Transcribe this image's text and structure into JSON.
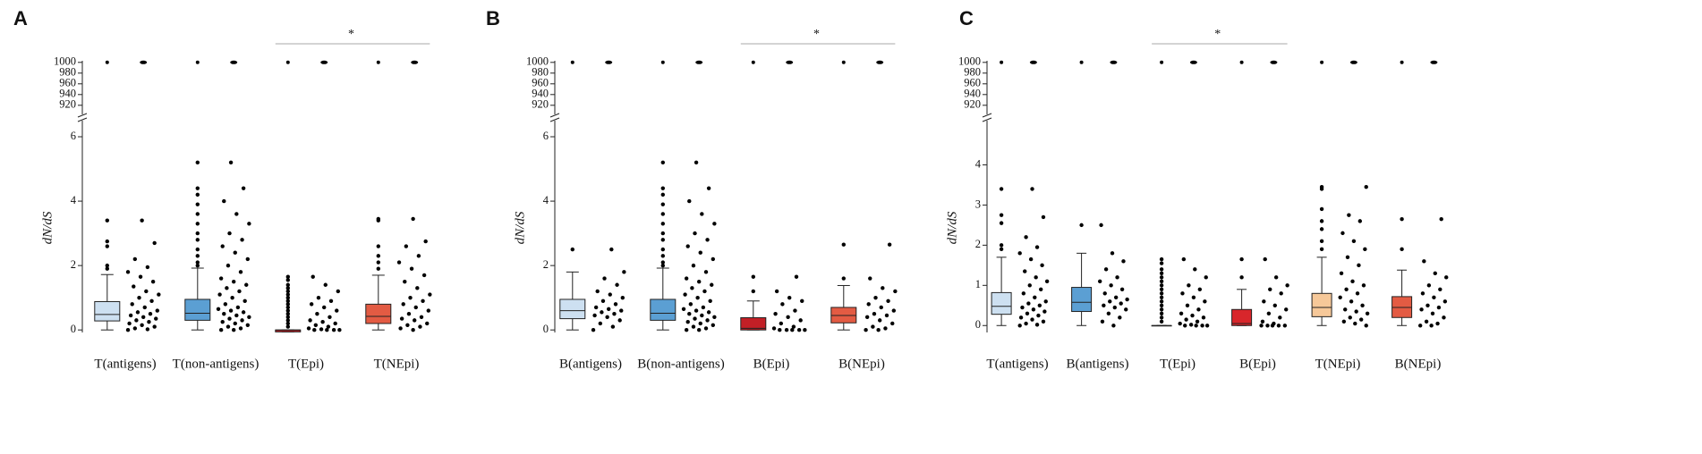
{
  "chart_data": [
    {
      "type": "box",
      "title": "A",
      "y_label": "dN/dS",
      "categories": [
        "T(antigens)",
        "T(non-antigens)",
        "T(Epi)",
        "T(NEpi)"
      ],
      "ylim": [
        -0.3,
        6.5
      ],
      "yticks": [
        0,
        2,
        4,
        6
      ],
      "ylim_top": [
        903,
        1003
      ],
      "yticks_top": [
        920,
        940,
        960,
        980,
        1000
      ],
      "significance": {
        "groups": [
          "T(Epi)",
          "T(NEpi)"
        ],
        "label": "*"
      },
      "series": [
        {
          "color": "#cde0f1",
          "whisker_low": 0,
          "q1": 0.28,
          "median": 0.48,
          "q3": 0.88,
          "whisker_high": 1.72,
          "outliers": [
            1.9,
            2.0,
            2.6,
            2.75,
            3.4
          ],
          "points": [
            0,
            0.02,
            0.05,
            0.1,
            0.15,
            0.2,
            0.25,
            0.3,
            0.35,
            0.4,
            0.45,
            0.5,
            0.55,
            0.6,
            0.7,
            0.8,
            0.9,
            1.0,
            1.1,
            1.2,
            1.35,
            1.5,
            1.65,
            1.8,
            1.95,
            2.2,
            2.7,
            3.4
          ],
          "extreme": [
            1000,
            1000
          ]
        },
        {
          "color": "#5b9fd3",
          "whisker_low": 0,
          "q1": 0.3,
          "median": 0.52,
          "q3": 0.95,
          "whisker_high": 1.92,
          "outliers": [
            2.0,
            2.1,
            2.3,
            2.5,
            2.8,
            3.0,
            3.3,
            3.6,
            3.9,
            4.2,
            4.4,
            5.2
          ],
          "points": [
            0,
            0,
            0.05,
            0.1,
            0.15,
            0.2,
            0.25,
            0.3,
            0.35,
            0.4,
            0.45,
            0.5,
            0.55,
            0.6,
            0.65,
            0.7,
            0.8,
            0.9,
            1.0,
            1.1,
            1.2,
            1.3,
            1.4,
            1.5,
            1.6,
            1.8,
            2.0,
            2.2,
            2.4,
            2.6,
            2.8,
            3.0,
            3.3,
            3.6,
            4.0,
            4.4,
            5.2
          ],
          "extreme": [
            1000,
            1000
          ]
        },
        {
          "color": "#c21f26",
          "whisker_low": -0.06,
          "q1": -0.06,
          "median": 0,
          "q3": 0,
          "whisker_high": 0,
          "outliers": [
            0.1,
            0.2,
            0.3,
            0.4,
            0.5,
            0.6,
            0.7,
            0.8,
            0.9,
            1.0,
            1.1,
            1.2,
            1.3,
            1.4,
            1.55,
            1.65
          ],
          "points": [
            0,
            0,
            0,
            0,
            0.02,
            0.05,
            0.1,
            0.15,
            0.2,
            0.25,
            0.3,
            0.4,
            0.5,
            0.6,
            0.7,
            0.8,
            0.9,
            1.0,
            1.2,
            1.4,
            1.65
          ],
          "extreme": [
            1000,
            1000
          ]
        },
        {
          "color": "#e35b43",
          "whisker_low": 0,
          "q1": 0.2,
          "median": 0.42,
          "q3": 0.8,
          "whisker_high": 1.7,
          "outliers": [
            1.9,
            2.1,
            2.3,
            2.6,
            3.4,
            3.45
          ],
          "points": [
            0,
            0.05,
            0.1,
            0.15,
            0.2,
            0.3,
            0.35,
            0.4,
            0.5,
            0.6,
            0.7,
            0.8,
            0.9,
            1.0,
            1.1,
            1.3,
            1.5,
            1.7,
            1.9,
            2.1,
            2.3,
            2.6,
            2.75,
            3.45
          ],
          "extreme": [
            1000,
            1000
          ]
        }
      ]
    },
    {
      "type": "box",
      "title": "B",
      "y_label": "dN/dS",
      "categories": [
        "B(antigens)",
        "B(non-antigens)",
        "B(Epi)",
        "B(NEpi)"
      ],
      "ylim": [
        -0.3,
        6.5
      ],
      "yticks": [
        0,
        2,
        4,
        6
      ],
      "ylim_top": [
        903,
        1003
      ],
      "yticks_top": [
        920,
        940,
        960,
        980,
        1000
      ],
      "significance": {
        "groups": [
          "B(Epi)",
          "B(NEpi)"
        ],
        "label": "*"
      },
      "series": [
        {
          "color": "#cde0f1",
          "whisker_low": 0,
          "q1": 0.35,
          "median": 0.6,
          "q3": 0.95,
          "whisker_high": 1.8,
          "outliers": [
            2.5
          ],
          "points": [
            0,
            0.1,
            0.2,
            0.3,
            0.4,
            0.45,
            0.5,
            0.55,
            0.6,
            0.65,
            0.7,
            0.8,
            0.9,
            1.0,
            1.1,
            1.2,
            1.4,
            1.6,
            1.8,
            2.5
          ],
          "extreme": [
            1000,
            1000
          ]
        },
        {
          "color": "#5b9fd3",
          "whisker_low": 0,
          "q1": 0.3,
          "median": 0.52,
          "q3": 0.95,
          "whisker_high": 1.92,
          "outliers": [
            2.0,
            2.1,
            2.3,
            2.5,
            2.8,
            3.0,
            3.3,
            3.6,
            3.9,
            4.2,
            4.4,
            5.2
          ],
          "points": [
            0,
            0,
            0.05,
            0.1,
            0.15,
            0.2,
            0.25,
            0.3,
            0.35,
            0.4,
            0.45,
            0.5,
            0.55,
            0.6,
            0.65,
            0.7,
            0.8,
            0.9,
            1.0,
            1.1,
            1.2,
            1.3,
            1.4,
            1.5,
            1.6,
            1.8,
            2.0,
            2.2,
            2.4,
            2.6,
            2.8,
            3.0,
            3.3,
            3.6,
            4.0,
            4.4,
            5.2
          ],
          "extreme": [
            1000,
            1000
          ]
        },
        {
          "color": "#c21f26",
          "whisker_low": 0,
          "q1": 0,
          "median": 0.05,
          "q3": 0.38,
          "whisker_high": 0.9,
          "outliers": [
            1.2,
            1.65
          ],
          "points": [
            0,
            0,
            0,
            0,
            0,
            0.05,
            0.1,
            0.2,
            0.3,
            0.4,
            0.5,
            0.6,
            0.8,
            0.9,
            1.0,
            1.2,
            1.65
          ],
          "extreme": [
            1000,
            1000
          ]
        },
        {
          "color": "#e35b43",
          "whisker_low": 0,
          "q1": 0.22,
          "median": 0.45,
          "q3": 0.7,
          "whisker_high": 1.38,
          "outliers": [
            1.6,
            2.65
          ],
          "points": [
            0,
            0,
            0.05,
            0.1,
            0.2,
            0.3,
            0.4,
            0.45,
            0.5,
            0.6,
            0.7,
            0.8,
            0.9,
            1.0,
            1.2,
            1.3,
            1.6,
            2.65
          ],
          "extreme": [
            1000,
            1000
          ]
        }
      ]
    },
    {
      "type": "box",
      "title": "C",
      "y_label": "dN/dS",
      "categories": [
        "T(antigens)",
        "B(antigens)",
        "T(Epi)",
        "B(Epi)",
        "T(NEpi)",
        "B(NEpi)"
      ],
      "ylim": [
        -0.35,
        5.1
      ],
      "yticks": [
        0,
        1,
        2,
        3,
        4
      ],
      "ylim_top": [
        903,
        1003
      ],
      "yticks_top": [
        920,
        940,
        960,
        980,
        1000
      ],
      "significance": {
        "groups": [
          "T(Epi)",
          "B(Epi)"
        ],
        "label": "*"
      },
      "series": [
        {
          "color": "#cde0f1",
          "whisker_low": 0,
          "q1": 0.28,
          "median": 0.48,
          "q3": 0.82,
          "whisker_high": 1.7,
          "outliers": [
            1.9,
            2.0,
            2.55,
            2.75,
            3.4
          ],
          "points": [
            0,
            0.02,
            0.05,
            0.1,
            0.15,
            0.2,
            0.25,
            0.3,
            0.35,
            0.4,
            0.45,
            0.5,
            0.55,
            0.6,
            0.7,
            0.8,
            0.9,
            1.0,
            1.1,
            1.2,
            1.35,
            1.5,
            1.65,
            1.8,
            1.95,
            2.2,
            2.7,
            3.4
          ],
          "extreme": [
            1000,
            1000
          ]
        },
        {
          "color": "#5b9fd3",
          "whisker_low": 0,
          "q1": 0.35,
          "median": 0.58,
          "q3": 0.95,
          "whisker_high": 1.8,
          "outliers": [
            2.5
          ],
          "points": [
            0,
            0.1,
            0.2,
            0.3,
            0.4,
            0.45,
            0.5,
            0.55,
            0.6,
            0.65,
            0.7,
            0.8,
            0.9,
            1.0,
            1.1,
            1.2,
            1.4,
            1.6,
            1.8,
            2.5
          ],
          "extreme": [
            1000,
            1000
          ]
        },
        {
          "color": "#f3a7a0",
          "whisker_low": 0,
          "q1": 0,
          "median": 0,
          "q3": 0,
          "whisker_high": 0,
          "outliers": [
            0.1,
            0.2,
            0.3,
            0.4,
            0.5,
            0.6,
            0.7,
            0.8,
            0.9,
            1.0,
            1.1,
            1.2,
            1.3,
            1.4,
            1.55,
            1.65
          ],
          "points": [
            0,
            0,
            0,
            0,
            0.02,
            0.05,
            0.1,
            0.15,
            0.2,
            0.25,
            0.3,
            0.4,
            0.5,
            0.6,
            0.7,
            0.8,
            0.9,
            1.0,
            1.2,
            1.4,
            1.65
          ],
          "extreme": [
            1000,
            1000
          ]
        },
        {
          "color": "#d8262b",
          "whisker_low": 0,
          "q1": 0,
          "median": 0.05,
          "q3": 0.4,
          "whisker_high": 0.9,
          "outliers": [
            1.2,
            1.65
          ],
          "points": [
            0,
            0,
            0,
            0,
            0,
            0.05,
            0.1,
            0.2,
            0.3,
            0.4,
            0.5,
            0.6,
            0.8,
            0.9,
            1.0,
            1.2,
            1.65
          ],
          "extreme": [
            1000,
            1000
          ]
        },
        {
          "color": "#f6c899",
          "whisker_low": 0,
          "q1": 0.22,
          "median": 0.45,
          "q3": 0.8,
          "whisker_high": 1.7,
          "outliers": [
            1.9,
            2.1,
            2.4,
            2.6,
            2.9,
            3.4,
            3.45
          ],
          "points": [
            0,
            0.05,
            0.1,
            0.15,
            0.2,
            0.3,
            0.35,
            0.4,
            0.5,
            0.6,
            0.7,
            0.8,
            0.9,
            1.0,
            1.1,
            1.3,
            1.5,
            1.7,
            1.9,
            2.1,
            2.3,
            2.6,
            2.75,
            3.45
          ],
          "extreme": [
            1000,
            1000
          ]
        },
        {
          "color": "#e35b43",
          "whisker_low": 0,
          "q1": 0.2,
          "median": 0.45,
          "q3": 0.72,
          "whisker_high": 1.38,
          "outliers": [
            1.9,
            2.65
          ],
          "points": [
            0,
            0,
            0.05,
            0.1,
            0.2,
            0.3,
            0.4,
            0.45,
            0.5,
            0.6,
            0.7,
            0.8,
            0.9,
            1.0,
            1.2,
            1.3,
            1.6,
            2.65
          ],
          "extreme": [
            1000,
            1000
          ]
        }
      ]
    }
  ]
}
